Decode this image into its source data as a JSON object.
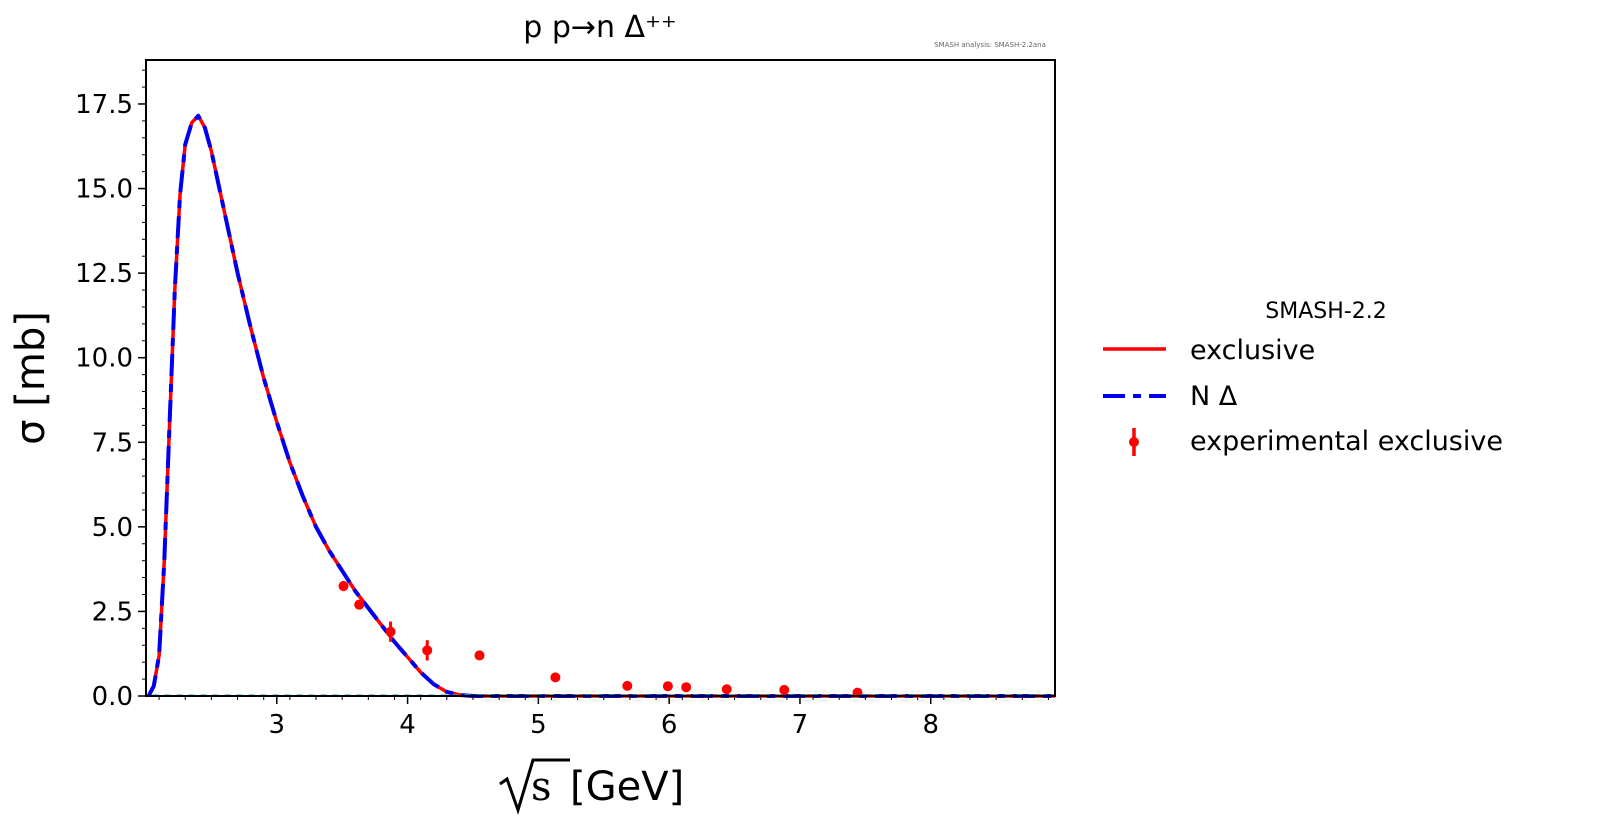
{
  "chart_data": {
    "type": "line",
    "title": "p p→n Δ⁺⁺",
    "watermark": "SMASH analysis: SMASH-2.2ana",
    "xlabel": "[GeV]",
    "ylabel": "σ [mb]",
    "xlim": [
      2.0,
      8.95
    ],
    "ylim": [
      0.0,
      18.8
    ],
    "x_ticks": [
      {
        "value": 3,
        "label": "3"
      },
      {
        "value": 4,
        "label": "4"
      },
      {
        "value": 5,
        "label": "5"
      },
      {
        "value": 6,
        "label": "6"
      },
      {
        "value": 7,
        "label": "7"
      },
      {
        "value": 8,
        "label": "8"
      }
    ],
    "y_ticks": [
      {
        "value": 0.0,
        "label": "0.0"
      },
      {
        "value": 2.5,
        "label": "2.5"
      },
      {
        "value": 5.0,
        "label": "5.0"
      },
      {
        "value": 7.5,
        "label": "7.5"
      },
      {
        "value": 10.0,
        "label": "10.0"
      },
      {
        "value": 12.5,
        "label": "12.5"
      },
      {
        "value": 15.0,
        "label": "15.0"
      },
      {
        "value": 17.5,
        "label": "17.5"
      }
    ],
    "grid": false,
    "legend_title": "SMASH-2.2",
    "legend_position": "outside-right",
    "colors": {
      "exclusive": "#ff0000",
      "n_delta": "#0000ee",
      "experimental": "#ff0000",
      "thin": "#9467bd",
      "background": "#ffffff"
    },
    "series": [
      {
        "name": "exclusive",
        "style": "solid",
        "x": [
          2.02,
          2.06,
          2.1,
          2.14,
          2.18,
          2.22,
          2.26,
          2.3,
          2.35,
          2.4,
          2.45,
          2.5,
          2.6,
          2.7,
          2.8,
          2.9,
          3.0,
          3.1,
          3.2,
          3.3,
          3.4,
          3.5,
          3.6,
          3.7,
          3.8,
          3.9,
          4.0,
          4.1,
          4.2,
          4.3,
          4.4,
          4.5,
          5.0,
          6.0,
          7.0,
          8.0,
          8.95
        ],
        "y": [
          0.0,
          0.3,
          1.2,
          4.0,
          8.0,
          12.0,
          14.8,
          16.3,
          16.95,
          17.15,
          16.8,
          16.1,
          14.3,
          12.5,
          10.9,
          9.4,
          8.1,
          6.9,
          5.9,
          5.0,
          4.3,
          3.7,
          3.1,
          2.6,
          2.1,
          1.6,
          1.15,
          0.7,
          0.35,
          0.12,
          0.03,
          0.0,
          0.0,
          0.0,
          0.0,
          0.0,
          0.0
        ]
      },
      {
        "name": "N Δ",
        "style": "dashed",
        "x": [
          2.02,
          2.06,
          2.1,
          2.14,
          2.18,
          2.22,
          2.26,
          2.3,
          2.35,
          2.4,
          2.45,
          2.5,
          2.6,
          2.7,
          2.8,
          2.9,
          3.0,
          3.1,
          3.2,
          3.3,
          3.4,
          3.5,
          3.6,
          3.7,
          3.8,
          3.9,
          4.0,
          4.1,
          4.2,
          4.3,
          4.4,
          4.5,
          5.0,
          6.0,
          7.0,
          8.0,
          8.95
        ],
        "y": [
          0.0,
          0.3,
          1.2,
          4.0,
          8.0,
          12.0,
          14.8,
          16.3,
          16.95,
          17.15,
          16.8,
          16.1,
          14.3,
          12.5,
          10.9,
          9.4,
          8.1,
          6.9,
          5.9,
          5.0,
          4.3,
          3.7,
          3.1,
          2.6,
          2.1,
          1.6,
          1.15,
          0.7,
          0.35,
          0.12,
          0.03,
          0.0,
          0.0,
          0.0,
          0.0,
          0.0,
          0.0
        ]
      },
      {
        "name": "experimental exclusive",
        "style": "points",
        "points": [
          {
            "x": 3.51,
            "y": 3.25,
            "err": 0.15
          },
          {
            "x": 3.63,
            "y": 2.7,
            "err": 0.1
          },
          {
            "x": 3.87,
            "y": 1.9,
            "err": 0.3
          },
          {
            "x": 4.15,
            "y": 1.35,
            "err": 0.3
          },
          {
            "x": 4.55,
            "y": 1.2,
            "err": 0.05
          },
          {
            "x": 5.13,
            "y": 0.55,
            "err": 0.05
          },
          {
            "x": 5.68,
            "y": 0.3,
            "err": 0.03
          },
          {
            "x": 5.99,
            "y": 0.29,
            "err": 0.03
          },
          {
            "x": 6.13,
            "y": 0.26,
            "err": 0.03
          },
          {
            "x": 6.44,
            "y": 0.2,
            "err": 0.03
          },
          {
            "x": 6.88,
            "y": 0.18,
            "err": 0.03
          },
          {
            "x": 7.44,
            "y": 0.1,
            "err": 0.02
          }
        ]
      }
    ]
  }
}
